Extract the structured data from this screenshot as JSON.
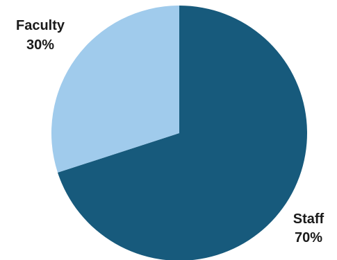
{
  "chart_data": {
    "type": "pie",
    "slices": [
      {
        "label": "Staff",
        "value": 70,
        "value_label": "70%",
        "color": "#175a7c"
      },
      {
        "label": "Faculty",
        "value": 30,
        "value_label": "30%",
        "color": "#a0cbec"
      }
    ],
    "start": "12 o'clock",
    "direction": "clockwise",
    "legend": "none"
  }
}
